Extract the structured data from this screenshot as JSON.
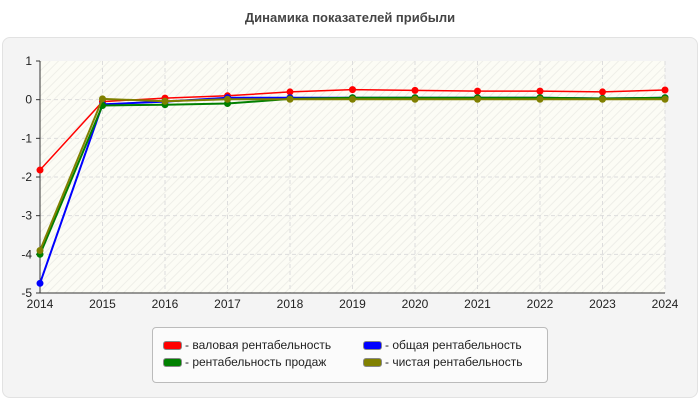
{
  "chart_data": {
    "type": "line",
    "title": "Динамика показателей прибыли",
    "x": [
      "2014",
      "2015",
      "2016",
      "2017",
      "2018",
      "2019",
      "2020",
      "2021",
      "2022",
      "2023",
      "2024"
    ],
    "ylim": [
      -5,
      1
    ],
    "yticks": [
      "1",
      "0",
      "-1",
      "-2",
      "-3",
      "-4",
      "-5"
    ],
    "grid": true,
    "legend_position": "bottom",
    "series": [
      {
        "name": "- валовая рентабельность",
        "color": "#ff0000",
        "values": [
          -1.82,
          -0.05,
          0.04,
          0.1,
          0.2,
          0.26,
          0.24,
          0.22,
          0.22,
          0.2,
          0.25
        ]
      },
      {
        "name": "- общая рентабельность",
        "color": "#0000ff",
        "values": [
          -4.75,
          -0.12,
          -0.05,
          0.05,
          0.05,
          0.05,
          0.05,
          0.05,
          0.05,
          0.03,
          0.05
        ]
      },
      {
        "name": "- рентабельность продаж",
        "color": "#008000",
        "values": [
          -4.0,
          -0.15,
          -0.13,
          -0.1,
          0.02,
          0.05,
          0.05,
          0.05,
          0.05,
          0.03,
          0.05
        ]
      },
      {
        "name": "- чистая рентабельность",
        "color": "#808000",
        "values": [
          -3.9,
          0.02,
          -0.04,
          0.01,
          0.01,
          0.01,
          0.01,
          0.01,
          0.01,
          0.01,
          0.01
        ]
      }
    ]
  }
}
